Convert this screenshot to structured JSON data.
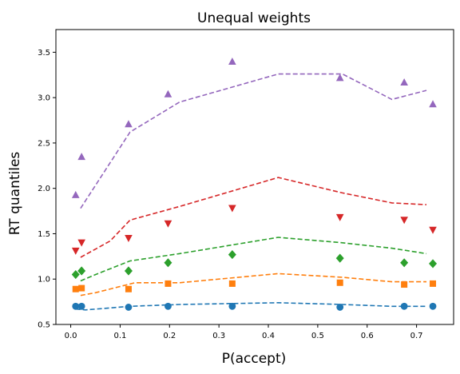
{
  "chart_data": {
    "type": "scatter",
    "title": "Unequal weights",
    "xlabel": "P(accept)",
    "ylabel": "RT quantiles",
    "xlim": [
      -0.03,
      0.775
    ],
    "ylim": [
      0.5,
      3.75
    ],
    "xticks": [
      0.0,
      0.1,
      0.2,
      0.3,
      0.4,
      0.5,
      0.6,
      0.7
    ],
    "xtick_labels": [
      "0.0",
      "0.1",
      "0.2",
      "0.3",
      "0.4",
      "0.5",
      "0.6",
      "0.7"
    ],
    "yticks": [
      0.5,
      1.0,
      1.5,
      2.0,
      2.5,
      3.0,
      3.5
    ],
    "ytick_labels": [
      "0.5",
      "1.0",
      "1.5",
      "2.0",
      "2.5",
      "3.0",
      "3.5"
    ],
    "grid": false,
    "legend": "none",
    "series": [
      {
        "color": "#1f77b4",
        "marker": "circle",
        "points": [
          [
            0.01,
            0.7
          ],
          [
            0.022,
            0.7
          ],
          [
            0.117,
            0.69
          ],
          [
            0.197,
            0.7
          ],
          [
            0.327,
            0.7
          ],
          [
            0.545,
            0.69
          ],
          [
            0.675,
            0.7
          ],
          [
            0.733,
            0.7
          ]
        ],
        "line": [
          [
            0.01,
            0.67
          ],
          [
            0.03,
            0.66
          ],
          [
            0.12,
            0.7
          ],
          [
            0.22,
            0.72
          ],
          [
            0.42,
            0.74
          ],
          [
            0.55,
            0.72
          ],
          [
            0.65,
            0.7
          ],
          [
            0.72,
            0.7
          ]
        ]
      },
      {
        "color": "#ff7f0e",
        "marker": "square",
        "points": [
          [
            0.01,
            0.89
          ],
          [
            0.022,
            0.9
          ],
          [
            0.117,
            0.89
          ],
          [
            0.197,
            0.95
          ],
          [
            0.327,
            0.95
          ],
          [
            0.545,
            0.96
          ],
          [
            0.675,
            0.94
          ],
          [
            0.733,
            0.95
          ]
        ],
        "line": [
          [
            0.02,
            0.82
          ],
          [
            0.05,
            0.85
          ],
          [
            0.13,
            0.96
          ],
          [
            0.22,
            0.96
          ],
          [
            0.42,
            1.06
          ],
          [
            0.55,
            1.02
          ],
          [
            0.65,
            0.97
          ],
          [
            0.72,
            0.97
          ]
        ]
      },
      {
        "color": "#2ca02c",
        "marker": "diamond",
        "points": [
          [
            0.01,
            1.05
          ],
          [
            0.022,
            1.09
          ],
          [
            0.117,
            1.09
          ],
          [
            0.197,
            1.18
          ],
          [
            0.327,
            1.27
          ],
          [
            0.545,
            1.23
          ],
          [
            0.675,
            1.18
          ],
          [
            0.733,
            1.17
          ]
        ],
        "line": [
          [
            0.02,
            0.98
          ],
          [
            0.05,
            1.05
          ],
          [
            0.12,
            1.2
          ],
          [
            0.22,
            1.28
          ],
          [
            0.42,
            1.46
          ],
          [
            0.55,
            1.4
          ],
          [
            0.65,
            1.34
          ],
          [
            0.72,
            1.28
          ]
        ]
      },
      {
        "color": "#d62728",
        "marker": "triangle-down",
        "points": [
          [
            0.01,
            1.31
          ],
          [
            0.022,
            1.4
          ],
          [
            0.117,
            1.45
          ],
          [
            0.197,
            1.61
          ],
          [
            0.327,
            1.78
          ],
          [
            0.545,
            1.68
          ],
          [
            0.675,
            1.65
          ],
          [
            0.733,
            1.54
          ]
        ],
        "line": [
          [
            0.02,
            1.24
          ],
          [
            0.08,
            1.42
          ],
          [
            0.12,
            1.65
          ],
          [
            0.22,
            1.8
          ],
          [
            0.42,
            2.12
          ],
          [
            0.55,
            1.95
          ],
          [
            0.65,
            1.84
          ],
          [
            0.72,
            1.82
          ]
        ]
      },
      {
        "color": "#9467bd",
        "marker": "triangle-up",
        "points": [
          [
            0.01,
            1.93
          ],
          [
            0.022,
            2.35
          ],
          [
            0.117,
            2.71
          ],
          [
            0.197,
            3.04
          ],
          [
            0.327,
            3.4
          ],
          [
            0.545,
            3.22
          ],
          [
            0.675,
            3.17
          ],
          [
            0.733,
            2.93
          ]
        ],
        "line": [
          [
            0.02,
            1.78
          ],
          [
            0.12,
            2.62
          ],
          [
            0.22,
            2.95
          ],
          [
            0.42,
            3.26
          ],
          [
            0.55,
            3.26
          ],
          [
            0.65,
            2.98
          ],
          [
            0.72,
            3.08
          ]
        ]
      }
    ]
  }
}
